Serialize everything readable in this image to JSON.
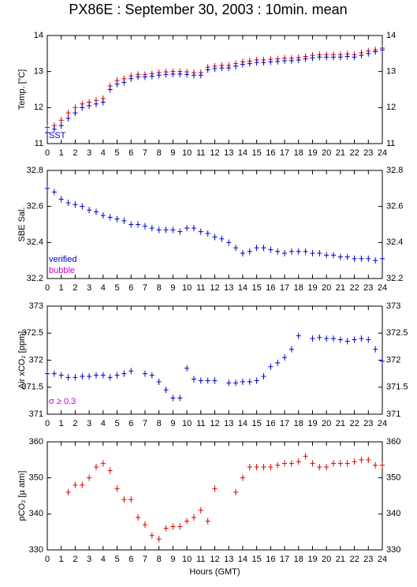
{
  "title": "PX86E : September 30, 2003 : 10min. mean",
  "chart_data": [
    {
      "type": "scatter",
      "ylabel": "Temp. [°C]",
      "xlim": [
        0,
        24
      ],
      "ylim": [
        11,
        14
      ],
      "yticks": [
        11,
        12,
        13,
        14
      ],
      "xticks": [
        0,
        1,
        2,
        3,
        4,
        5,
        6,
        7,
        8,
        9,
        10,
        11,
        12,
        13,
        14,
        15,
        16,
        17,
        18,
        19,
        20,
        21,
        22,
        23,
        24
      ],
      "x": [
        0,
        0.5,
        1,
        1.5,
        2,
        2.5,
        3,
        3.5,
        4,
        4.5,
        5,
        5.5,
        6,
        6.5,
        7,
        7.5,
        8,
        8.5,
        9,
        9.5,
        10,
        10.5,
        11,
        11.5,
        12,
        12.5,
        13,
        13.5,
        14,
        14.5,
        15,
        15.5,
        16,
        16.5,
        17,
        17.5,
        18,
        18.5,
        19,
        19.5,
        20,
        20.5,
        21,
        21.5,
        22,
        22.5,
        23,
        23.5,
        24
      ],
      "series": [
        {
          "color": "#dd0000",
          "values": [
            11.45,
            11.5,
            11.65,
            11.85,
            12.0,
            12.1,
            12.15,
            12.2,
            12.25,
            12.6,
            12.75,
            12.8,
            12.88,
            12.92,
            12.92,
            12.94,
            12.97,
            12.99,
            13.0,
            13.0,
            12.99,
            12.97,
            12.97,
            13.12,
            13.15,
            13.17,
            13.17,
            13.22,
            13.27,
            13.29,
            13.32,
            13.32,
            13.34,
            13.35,
            13.37,
            13.37,
            13.39,
            13.42,
            13.45,
            13.47,
            13.47,
            13.47,
            13.47,
            13.49,
            13.47,
            13.52,
            13.57,
            13.6,
            13.65
          ]
        },
        {
          "name": "SST",
          "color": "#0000cc",
          "values": [
            11.3,
            11.4,
            11.5,
            11.7,
            11.85,
            12.0,
            12.05,
            12.1,
            12.15,
            12.5,
            12.65,
            12.7,
            12.8,
            12.85,
            12.85,
            12.87,
            12.9,
            12.92,
            12.93,
            12.93,
            12.92,
            12.9,
            12.9,
            13.05,
            13.08,
            13.1,
            13.1,
            13.15,
            13.2,
            13.22,
            13.25,
            13.25,
            13.27,
            13.28,
            13.3,
            13.3,
            13.32,
            13.35,
            13.38,
            13.4,
            13.4,
            13.4,
            13.4,
            13.42,
            13.4,
            13.45,
            13.5,
            13.55,
            13.6
          ]
        }
      ]
    },
    {
      "type": "scatter",
      "ylabel": "SBE Sal.",
      "xlim": [
        0,
        24
      ],
      "ylim": [
        32.2,
        32.8
      ],
      "yticks": [
        32.2,
        32.4,
        32.6,
        32.8
      ],
      "xticks": [
        0,
        1,
        2,
        3,
        4,
        5,
        6,
        7,
        8,
        9,
        10,
        11,
        12,
        13,
        14,
        15,
        16,
        17,
        18,
        19,
        20,
        21,
        22,
        23,
        24
      ],
      "x": [
        0,
        0.5,
        1,
        1.5,
        2,
        2.5,
        3,
        3.5,
        4,
        4.5,
        5,
        5.5,
        6,
        6.5,
        7,
        7.5,
        8,
        8.5,
        9,
        9.5,
        10,
        10.5,
        11,
        11.5,
        12,
        12.5,
        13,
        13.5,
        14,
        14.5,
        15,
        15.5,
        16,
        16.5,
        17,
        17.5,
        18,
        18.5,
        19,
        19.5,
        20,
        20.5,
        21,
        21.5,
        22,
        22.5,
        23,
        23.5,
        24
      ],
      "series": [
        {
          "name": "verified",
          "color": "#0000cc",
          "values": [
            32.7,
            32.68,
            32.64,
            32.62,
            32.61,
            32.6,
            32.58,
            32.57,
            32.55,
            32.54,
            32.53,
            32.52,
            32.5,
            32.5,
            32.49,
            32.48,
            32.47,
            32.47,
            32.47,
            32.46,
            32.48,
            32.48,
            32.46,
            32.45,
            32.43,
            32.42,
            32.4,
            32.37,
            32.34,
            32.35,
            32.37,
            32.37,
            32.36,
            32.35,
            32.34,
            32.35,
            32.35,
            32.35,
            32.34,
            32.34,
            32.33,
            32.33,
            32.32,
            32.32,
            32.31,
            32.31,
            32.31,
            32.3,
            32.31
          ]
        },
        {
          "name": "bubble",
          "color": "#cc00cc",
          "values": [
            null,
            null,
            null,
            null,
            null,
            null,
            null,
            null,
            null,
            null,
            null,
            null,
            null,
            null,
            null,
            null,
            null,
            null,
            null,
            null,
            null,
            null,
            null,
            null,
            null,
            null,
            null,
            null,
            null,
            null,
            null,
            null,
            null,
            null,
            null,
            null,
            null,
            null,
            null,
            null,
            null,
            null,
            null,
            null,
            null,
            null,
            null,
            null,
            null
          ]
        }
      ]
    },
    {
      "type": "scatter",
      "ylabel": "Air xCO₂ [ppm]",
      "xlim": [
        0,
        24
      ],
      "ylim": [
        371,
        373
      ],
      "yticks": [
        371,
        371.5,
        372,
        372.5,
        373
      ],
      "xticks": [
        0,
        1,
        2,
        3,
        4,
        5,
        6,
        7,
        8,
        9,
        10,
        11,
        12,
        13,
        14,
        15,
        16,
        17,
        18,
        19,
        20,
        21,
        22,
        23,
        24
      ],
      "annotation": {
        "text": "σ ≥ 0.3",
        "color": "#cc00cc"
      },
      "x": [
        0,
        0.5,
        1,
        1.5,
        2,
        2.5,
        3,
        3.5,
        4,
        4.5,
        5,
        5.5,
        6,
        6.5,
        7,
        7.5,
        8,
        8.5,
        9,
        9.5,
        10,
        10.5,
        11,
        11.5,
        12,
        12.5,
        13,
        13.5,
        14,
        14.5,
        15,
        15.5,
        16,
        16.5,
        17,
        17.5,
        18,
        18.5,
        19,
        19.5,
        20,
        20.5,
        21,
        21.5,
        22,
        22.5,
        23,
        23.5,
        24
      ],
      "series": [
        {
          "color": "#0000cc",
          "values": [
            371.75,
            371.75,
            371.72,
            371.68,
            371.68,
            371.7,
            371.7,
            371.72,
            371.72,
            371.68,
            371.72,
            371.75,
            371.8,
            null,
            371.75,
            371.72,
            371.6,
            371.45,
            371.3,
            371.3,
            371.85,
            371.65,
            371.62,
            371.62,
            371.62,
            null,
            371.58,
            371.58,
            371.6,
            371.6,
            371.62,
            371.7,
            371.88,
            371.95,
            372.05,
            372.2,
            372.45,
            null,
            372.4,
            372.42,
            372.4,
            372.4,
            372.38,
            372.35,
            372.38,
            372.4,
            372.38,
            372.2,
            371.98
          ]
        }
      ]
    },
    {
      "type": "scatter",
      "ylabel": "pCO₂ [µ atm]",
      "xlabel": "Hours (GMT)",
      "xlim": [
        0,
        24
      ],
      "ylim": [
        330,
        360
      ],
      "yticks": [
        330,
        340,
        350,
        360
      ],
      "xticks": [
        0,
        1,
        2,
        3,
        4,
        5,
        6,
        7,
        8,
        9,
        10,
        11,
        12,
        13,
        14,
        15,
        16,
        17,
        18,
        19,
        20,
        21,
        22,
        23,
        24
      ],
      "x": [
        0,
        0.5,
        1,
        1.5,
        2,
        2.5,
        3,
        3.5,
        4,
        4.5,
        5,
        5.5,
        6,
        6.5,
        7,
        7.5,
        8,
        8.5,
        9,
        9.5,
        10,
        10.5,
        11,
        11.5,
        12,
        12.5,
        13,
        13.5,
        14,
        14.5,
        15,
        15.5,
        16,
        16.5,
        17,
        17.5,
        18,
        18.5,
        19,
        19.5,
        20,
        20.5,
        21,
        21.5,
        22,
        22.5,
        23,
        23.5,
        24
      ],
      "series": [
        {
          "color": "#dd0000",
          "values": [
            null,
            null,
            null,
            346,
            348,
            348,
            350,
            353,
            354,
            352,
            347,
            344,
            344,
            339,
            337,
            334,
            333,
            336,
            336.5,
            336.5,
            338,
            339,
            341,
            338,
            347,
            null,
            null,
            346,
            350,
            353,
            353,
            353,
            353,
            353.5,
            354,
            354,
            354.5,
            356,
            354,
            353,
            353,
            354,
            354,
            354,
            354.5,
            355,
            355,
            353.5,
            353.5
          ]
        }
      ]
    }
  ]
}
